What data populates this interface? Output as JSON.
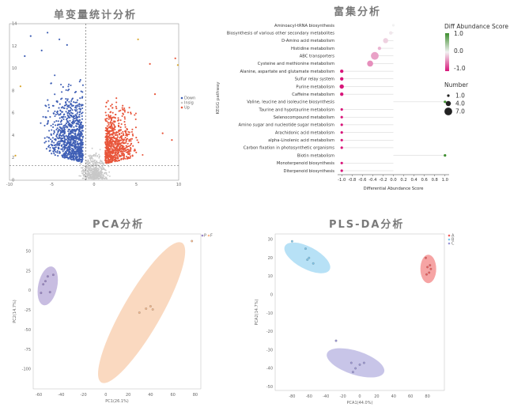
{
  "titles": {
    "volcano": "单变量统计分析",
    "enrichment": "富集分析",
    "pca": "PCA分析",
    "plsda": "PLS-DA分析"
  },
  "colors": {
    "up": "#e8553a",
    "down": "#3f5fb5",
    "ns": "#c8c8c8",
    "pos_score": "#3e8e2f",
    "neg_score": "#d8157a",
    "pca_g1": "#9b86c8",
    "pca_g2": "#f6b98c",
    "pls_a": "#ef5a5a",
    "pls_b": "#7cc8ee",
    "pls_c": "#9b96d6"
  },
  "chart_data": [
    {
      "type": "scatter",
      "name": "volcano",
      "x_ticks": [
        "-10",
        "-5",
        "0",
        "5",
        "10"
      ],
      "y_ticks": [
        "0",
        "2",
        "4",
        "6",
        "8",
        "10",
        "12",
        "14"
      ],
      "xlim": [
        -10,
        10
      ],
      "ylim": [
        0,
        14
      ],
      "fc_threshold": [
        -1,
        1
      ],
      "p_threshold": 1.3,
      "legend": [
        "Down",
        "Insig",
        "Up"
      ],
      "n_down": 900,
      "n_up": 700,
      "n_ns": 500
    },
    {
      "type": "scatter",
      "name": "enrichment",
      "title": "富集分析",
      "ylabel": "KEGG pathway",
      "xlabel": "Differential Abundance Score",
      "x_ticks": [
        "-1.0",
        "-0.8",
        "-0.6",
        "-0.4",
        "-0.2",
        "0.0",
        "0.2",
        "0.4",
        "0.6",
        "0.8",
        "1.0"
      ],
      "xlim": [
        -1.08,
        1.08
      ],
      "color_legend_title": "Diff Abundance Score",
      "color_legend_ticks": [
        "1.0",
        "0.0",
        "-1.0"
      ],
      "size_legend_title": "Number",
      "size_legend_values": [
        "1.0",
        "4.0",
        "7.0"
      ],
      "pathways": [
        {
          "name": "Aminoacyl-tRNA biosynthesis",
          "score": 0.0,
          "n": 1
        },
        {
          "name": "Biosynthesis of various other secondary metabolites",
          "score": -0.05,
          "n": 2
        },
        {
          "name": "D-Amino acid metabolism",
          "score": -0.15,
          "n": 4
        },
        {
          "name": "Histidine metabolism",
          "score": -0.27,
          "n": 2
        },
        {
          "name": "ABC transporters",
          "score": -0.36,
          "n": 7
        },
        {
          "name": "Cysteine and methionine metabolism",
          "score": -0.45,
          "n": 5
        },
        {
          "name": "Alanine, aspartate and glutamate metabolism",
          "score": -1.0,
          "n": 2
        },
        {
          "name": "Sulfur relay system",
          "score": -1.0,
          "n": 2
        },
        {
          "name": "Purine metabolism",
          "score": -1.0,
          "n": 3
        },
        {
          "name": "Caffeine metabolism",
          "score": -1.0,
          "n": 2
        },
        {
          "name": "Valine, leucine and isoleucine biosynthesis",
          "score": 1.0,
          "n": 1
        },
        {
          "name": "Taurine and hypotaurine metabolism",
          "score": -1.0,
          "n": 1
        },
        {
          "name": "Selenocompound metabolism",
          "score": -1.0,
          "n": 1
        },
        {
          "name": "Amino sugar and nucleotide sugar metabolism",
          "score": -1.0,
          "n": 1
        },
        {
          "name": "Arachidonic acid metabolism",
          "score": -1.0,
          "n": 1
        },
        {
          "name": "alpha-Linolenic acid metabolism",
          "score": -1.0,
          "n": 1
        },
        {
          "name": "Carbon fixation in photosynthetic organisms",
          "score": -1.0,
          "n": 1
        },
        {
          "name": "Biotin metabolism",
          "score": 1.0,
          "n": 1
        },
        {
          "name": "Monoterpenoid biosynthesis",
          "score": -1.0,
          "n": 1
        },
        {
          "name": "Diterpenoid biosynthesis",
          "score": -1.0,
          "n": 1
        }
      ]
    },
    {
      "type": "scatter",
      "name": "pca",
      "title": "PCA分析",
      "xlabel": "PC1(26.1%)",
      "ylabel": "PC2(14.7%)",
      "xlim": [
        -65,
        85
      ],
      "ylim": [
        -125,
        72
      ],
      "x_ticks": [
        -60,
        -40,
        -20,
        0,
        20,
        40,
        60,
        80
      ],
      "y_ticks": [
        -100,
        -75,
        -50,
        -25,
        0,
        25,
        50
      ],
      "legend": [
        "P",
        "F"
      ],
      "series": [
        {
          "name": "P",
          "points": [
            [
              -56,
              8
            ],
            [
              -52,
              18
            ],
            [
              -47,
              20
            ],
            [
              -50,
              -2
            ],
            [
              -58,
              -3
            ],
            [
              -54,
              12
            ]
          ]
        },
        {
          "name": "F",
          "points": [
            [
              30,
              -28
            ],
            [
              36,
              -23
            ],
            [
              40,
              -20
            ],
            [
              42,
              -24
            ],
            [
              77,
              63
            ]
          ]
        }
      ]
    },
    {
      "type": "scatter",
      "name": "plsda",
      "title": "PLS-DA分析",
      "xlabel": "PCA1(44.0%)",
      "ylabel": "PCA2(14.7%)",
      "xlim": [
        -100,
        100
      ],
      "ylim": [
        -52,
        33
      ],
      "x_ticks": [
        -80,
        -60,
        -40,
        -20,
        0,
        20,
        40,
        60,
        80
      ],
      "y_ticks": [
        30,
        20,
        10,
        0,
        -10,
        -20,
        -30,
        -40,
        -50
      ],
      "legend": [
        "A",
        "B",
        "C"
      ],
      "series": [
        {
          "name": "A",
          "points": [
            [
              78,
              20
            ],
            [
              80,
              15
            ],
            [
              82,
              12
            ],
            [
              84,
              14
            ],
            [
              79,
              11
            ],
            [
              83,
              16
            ]
          ]
        },
        {
          "name": "B",
          "points": [
            [
              -80,
              29
            ],
            [
              -64,
              25
            ],
            [
              -60,
              20
            ],
            [
              -55,
              17
            ],
            [
              -62,
              19
            ]
          ]
        },
        {
          "name": "C",
          "points": [
            [
              -28,
              -25
            ],
            [
              -10,
              -37
            ],
            [
              -5,
              -40
            ],
            [
              0,
              -38
            ],
            [
              -8,
              -42
            ],
            [
              5,
              -37
            ]
          ]
        }
      ]
    }
  ]
}
